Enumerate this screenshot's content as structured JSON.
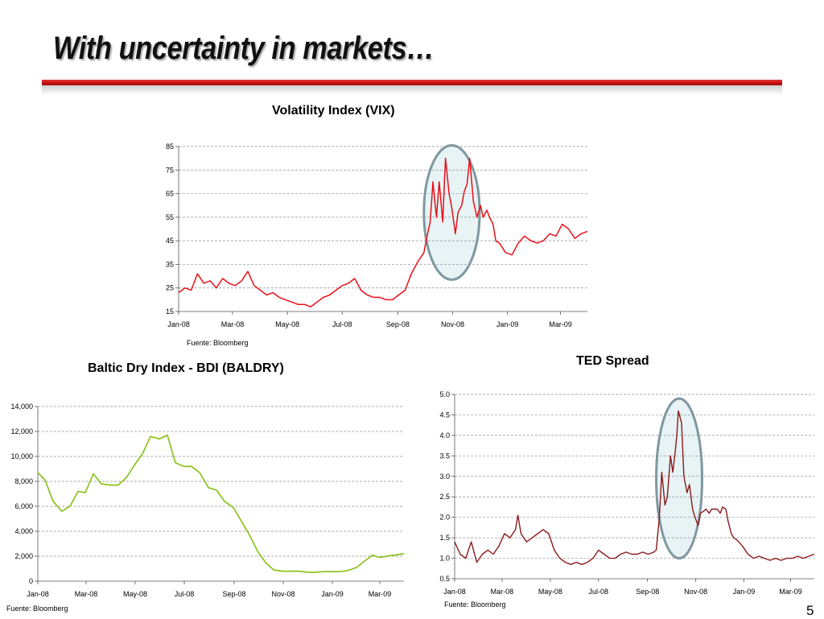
{
  "slide": {
    "title": "With uncertainty in markets…",
    "page_number": "5"
  },
  "colors": {
    "title_bar": "#c70d0d",
    "vix_line": "#e8101a",
    "bdi_line": "#8dc21f",
    "ted_line": "#8b1a1a",
    "highlight_fill": "#e7f3f5",
    "highlight_stroke": "#7f98a0",
    "grid": "#909090"
  },
  "chart_data": [
    {
      "id": "vix",
      "type": "line",
      "title": "Volatility Index  (VIX)",
      "source": "Fuente: Bloomberg",
      "xlabel": "",
      "ylabel": "",
      "ylim": [
        15,
        85
      ],
      "yticks": [
        15,
        25,
        35,
        45,
        55,
        65,
        75,
        85
      ],
      "ytick_labels": [
        "15",
        "25",
        "35",
        "45",
        "55",
        "65",
        "75",
        "85"
      ],
      "xlim": [
        "2008-01-01",
        "2009-03-31"
      ],
      "xticks": [
        "2008-01-01",
        "2008-03-01",
        "2008-05-01",
        "2008-07-01",
        "2008-09-01",
        "2008-11-01",
        "2009-01-01",
        "2009-03-01"
      ],
      "xtick_labels": [
        "Jan-08",
        "Mar-08",
        "May-08",
        "Jul-08",
        "Sep-08",
        "Nov-08",
        "Jan-09",
        "Mar-09"
      ],
      "grid": true,
      "highlight": {
        "shape": "ellipse",
        "x_center": "2008-10-31",
        "y_center": 57,
        "x_radius_days": 31,
        "y_radius": 28.5
      },
      "series": [
        {
          "x": [
            "2008-01-01",
            "2008-01-08",
            "2008-01-15",
            "2008-01-22",
            "2008-01-29",
            "2008-02-05",
            "2008-02-12",
            "2008-02-19",
            "2008-02-26",
            "2008-03-04",
            "2008-03-11",
            "2008-03-18",
            "2008-03-25",
            "2008-04-01",
            "2008-04-08",
            "2008-04-15",
            "2008-04-22",
            "2008-04-29",
            "2008-05-06",
            "2008-05-13",
            "2008-05-20",
            "2008-05-27",
            "2008-06-03",
            "2008-06-10",
            "2008-06-17",
            "2008-06-24",
            "2008-07-01",
            "2008-07-08",
            "2008-07-15",
            "2008-07-22",
            "2008-07-29",
            "2008-08-05",
            "2008-08-12",
            "2008-08-19",
            "2008-08-26",
            "2008-09-02",
            "2008-09-09",
            "2008-09-16",
            "2008-09-23",
            "2008-09-30",
            "2008-10-03",
            "2008-10-07",
            "2008-10-10",
            "2008-10-14",
            "2008-10-17",
            "2008-10-21",
            "2008-10-24",
            "2008-10-28",
            "2008-10-31",
            "2008-11-04",
            "2008-11-07",
            "2008-11-11",
            "2008-11-14",
            "2008-11-17",
            "2008-11-20",
            "2008-11-24",
            "2008-11-28",
            "2008-12-02",
            "2008-12-05",
            "2008-12-09",
            "2008-12-12",
            "2008-12-16",
            "2008-12-19",
            "2008-12-23",
            "2008-12-30",
            "2009-01-06",
            "2009-01-13",
            "2009-01-20",
            "2009-01-27",
            "2009-02-03",
            "2009-02-10",
            "2009-02-17",
            "2009-02-24",
            "2009-03-03",
            "2009-03-10",
            "2009-03-17",
            "2009-03-24",
            "2009-03-31"
          ],
          "values": [
            23,
            25,
            24,
            31,
            27,
            28,
            25,
            29,
            27,
            26,
            28,
            32,
            26,
            24,
            22,
            23,
            21,
            20,
            19,
            18,
            18,
            17,
            19,
            21,
            22,
            24,
            26,
            27,
            29,
            24,
            22,
            21,
            21,
            20,
            20,
            22,
            24,
            31,
            36,
            40,
            46,
            53,
            70,
            55,
            70,
            53,
            80,
            65,
            59,
            48,
            57,
            60,
            66,
            69,
            80,
            62,
            55,
            60,
            55,
            58,
            55,
            52,
            45,
            44,
            40,
            39,
            44,
            47,
            45,
            44,
            45,
            48,
            47,
            52,
            50,
            46,
            48,
            49
          ]
        }
      ]
    },
    {
      "id": "bdi",
      "type": "line",
      "title": "Baltic Dry Index - BDI (BALDRY)",
      "source": "Fuente: Bloomberg",
      "xlabel": "",
      "ylabel": "",
      "ylim": [
        0,
        14000
      ],
      "yticks": [
        0,
        2000,
        4000,
        6000,
        8000,
        10000,
        12000,
        14000
      ],
      "ytick_labels": [
        "0",
        "2,000",
        "4,000",
        "6,000",
        "8,000",
        "10,000",
        "12,000",
        "14,000"
      ],
      "xlim": [
        "2008-01-01",
        "2009-03-31"
      ],
      "xticks": [
        "2008-01-01",
        "2008-03-01",
        "2008-05-01",
        "2008-07-01",
        "2008-09-01",
        "2008-11-01",
        "2009-01-01",
        "2009-03-01"
      ],
      "xtick_labels": [
        "Jan-08",
        "Mar-08",
        "May-08",
        "Jul-08",
        "Sep-08",
        "Nov-08",
        "Jan-09",
        "Mar-09"
      ],
      "grid": true,
      "series": [
        {
          "x": [
            "2008-01-01",
            "2008-01-10",
            "2008-01-20",
            "2008-01-31",
            "2008-02-10",
            "2008-02-20",
            "2008-02-29",
            "2008-03-10",
            "2008-03-20",
            "2008-03-31",
            "2008-04-10",
            "2008-04-20",
            "2008-04-30",
            "2008-05-10",
            "2008-05-20",
            "2008-05-31",
            "2008-06-10",
            "2008-06-20",
            "2008-06-30",
            "2008-07-10",
            "2008-07-20",
            "2008-07-31",
            "2008-08-10",
            "2008-08-20",
            "2008-08-31",
            "2008-09-10",
            "2008-09-20",
            "2008-09-30",
            "2008-10-10",
            "2008-10-20",
            "2008-10-31",
            "2008-11-10",
            "2008-11-20",
            "2008-11-30",
            "2008-12-10",
            "2008-12-20",
            "2008-12-31",
            "2009-01-10",
            "2009-01-20",
            "2009-01-31",
            "2009-02-10",
            "2009-02-20",
            "2009-02-28",
            "2009-03-10",
            "2009-03-20",
            "2009-03-31"
          ],
          "values": [
            8700,
            8100,
            6400,
            5600,
            6000,
            7200,
            7100,
            8600,
            7800,
            7700,
            7700,
            8300,
            9300,
            10200,
            11600,
            11400,
            11700,
            9500,
            9200,
            9200,
            8700,
            7500,
            7300,
            6400,
            5900,
            4800,
            3700,
            2400,
            1500,
            900,
            800,
            800,
            800,
            720,
            700,
            760,
            770,
            760,
            850,
            1100,
            1600,
            2100,
            1900,
            2000,
            2100,
            2200
          ]
        }
      ]
    },
    {
      "id": "ted",
      "type": "line",
      "title": "TED Spread",
      "source": "Fuente: Bloomberg",
      "xlabel": "",
      "ylabel": "",
      "ylim": [
        0.5,
        5.0
      ],
      "yticks": [
        0.5,
        1.0,
        1.5,
        2.0,
        2.5,
        3.0,
        3.5,
        4.0,
        4.5,
        5.0
      ],
      "ytick_labels": [
        "0.5",
        "1.0",
        "1.5",
        "2.0",
        "2.5",
        "3.0",
        "3.5",
        "4.0",
        "4.5",
        "5.0"
      ],
      "xlim": [
        "2008-01-01",
        "2009-03-31"
      ],
      "xticks": [
        "2008-01-01",
        "2008-03-01",
        "2008-05-01",
        "2008-07-01",
        "2008-09-01",
        "2008-11-01",
        "2009-01-01",
        "2009-03-01"
      ],
      "xtick_labels": [
        "Jan-08",
        "Mar-08",
        "May-08",
        "Jul-08",
        "Sep-08",
        "Nov-08",
        "Jan-09",
        "Mar-09"
      ],
      "grid": true,
      "highlight": {
        "shape": "ellipse",
        "x_center": "2008-10-11",
        "y_center": 2.95,
        "x_radius_days": 29,
        "y_radius": 1.95
      },
      "series": [
        {
          "x": [
            "2008-01-01",
            "2008-01-08",
            "2008-01-15",
            "2008-01-22",
            "2008-01-29",
            "2008-02-05",
            "2008-02-12",
            "2008-02-19",
            "2008-02-26",
            "2008-03-04",
            "2008-03-11",
            "2008-03-18",
            "2008-03-21",
            "2008-03-25",
            "2008-04-01",
            "2008-04-08",
            "2008-04-15",
            "2008-04-22",
            "2008-04-29",
            "2008-05-06",
            "2008-05-13",
            "2008-05-20",
            "2008-05-27",
            "2008-06-03",
            "2008-06-10",
            "2008-06-17",
            "2008-06-24",
            "2008-07-01",
            "2008-07-08",
            "2008-07-15",
            "2008-07-22",
            "2008-07-29",
            "2008-08-05",
            "2008-08-12",
            "2008-08-19",
            "2008-08-26",
            "2008-09-02",
            "2008-09-09",
            "2008-09-12",
            "2008-09-16",
            "2008-09-19",
            "2008-09-23",
            "2008-09-26",
            "2008-09-30",
            "2008-10-03",
            "2008-10-06",
            "2008-10-08",
            "2008-10-10",
            "2008-10-14",
            "2008-10-17",
            "2008-10-21",
            "2008-10-24",
            "2008-10-28",
            "2008-10-31",
            "2008-11-04",
            "2008-11-07",
            "2008-11-11",
            "2008-11-14",
            "2008-11-18",
            "2008-11-21",
            "2008-11-25",
            "2008-11-28",
            "2008-12-02",
            "2008-12-05",
            "2008-12-09",
            "2008-12-12",
            "2008-12-16",
            "2008-12-19",
            "2008-12-23",
            "2008-12-30",
            "2009-01-06",
            "2009-01-13",
            "2009-01-20",
            "2009-01-27",
            "2009-02-03",
            "2009-02-10",
            "2009-02-17",
            "2009-02-24",
            "2009-03-03",
            "2009-03-10",
            "2009-03-17",
            "2009-03-24",
            "2009-03-31"
          ],
          "values": [
            1.4,
            1.1,
            1.0,
            1.4,
            0.9,
            1.1,
            1.2,
            1.1,
            1.3,
            1.6,
            1.5,
            1.7,
            2.05,
            1.6,
            1.4,
            1.5,
            1.6,
            1.7,
            1.6,
            1.2,
            1.0,
            0.9,
            0.85,
            0.9,
            0.85,
            0.9,
            1.0,
            1.2,
            1.1,
            1.0,
            1.0,
            1.1,
            1.15,
            1.1,
            1.1,
            1.15,
            1.1,
            1.15,
            1.2,
            2.0,
            3.1,
            2.3,
            2.5,
            3.5,
            3.1,
            3.6,
            4.0,
            4.6,
            4.3,
            3.0,
            2.6,
            2.8,
            2.2,
            2.0,
            1.8,
            2.1,
            2.15,
            2.2,
            2.1,
            2.2,
            2.2,
            2.2,
            2.1,
            2.25,
            2.2,
            1.9,
            1.6,
            1.5,
            1.45,
            1.3,
            1.1,
            1.0,
            1.05,
            1.0,
            0.95,
            1.0,
            0.95,
            1.0,
            1.0,
            1.05,
            1.0,
            1.05,
            1.1
          ]
        }
      ]
    }
  ]
}
